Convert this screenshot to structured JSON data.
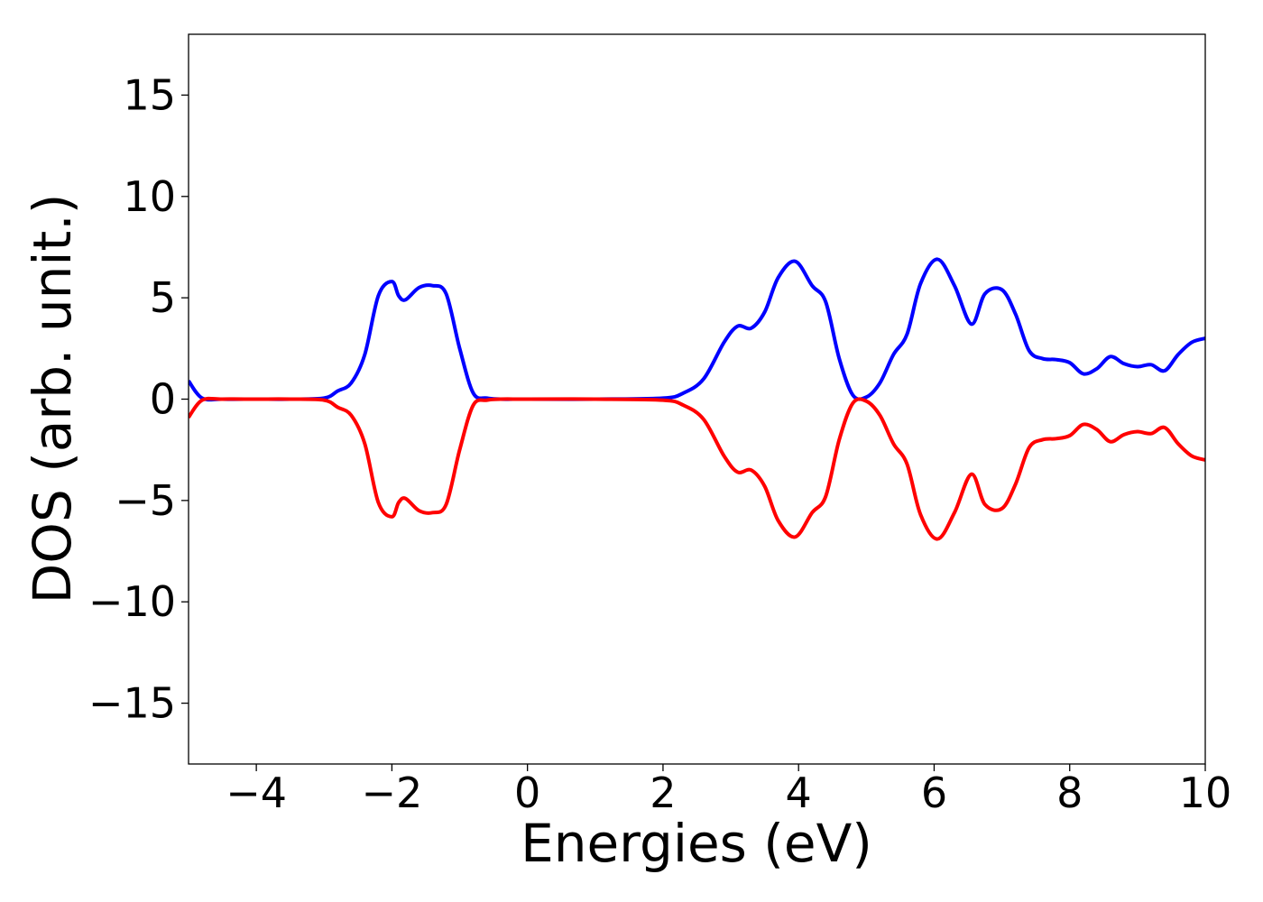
{
  "chart_data": {
    "type": "line",
    "xlabel": "Energies (eV)",
    "ylabel": "DOS (arb. unit.)",
    "xlim": [
      -5,
      10
    ],
    "ylim": [
      -18,
      18
    ],
    "xticks": [
      -4,
      -2,
      0,
      2,
      4,
      6,
      8,
      10
    ],
    "xtick_labels": [
      "−4",
      "−2",
      "0",
      "2",
      "4",
      "6",
      "8",
      "10"
    ],
    "yticks": [
      15,
      10,
      5,
      0,
      -5,
      -10,
      -15
    ],
    "ytick_labels": [
      "15",
      "10",
      "5",
      "0",
      "−5",
      "−10",
      "−15"
    ],
    "grid": false,
    "legend": "none",
    "x": [
      -5.0,
      -4.8,
      -4.5,
      -4.0,
      -3.5,
      -3.0,
      -2.8,
      -2.6,
      -2.4,
      -2.2,
      -2.0,
      -1.9,
      -1.8,
      -1.6,
      -1.4,
      -1.2,
      -1.0,
      -0.8,
      -0.6,
      -0.4,
      0.0,
      1.0,
      2.0,
      2.3,
      2.6,
      2.9,
      3.1,
      3.3,
      3.5,
      3.7,
      3.95,
      4.2,
      4.4,
      4.6,
      4.8,
      5.0,
      5.2,
      5.4,
      5.6,
      5.8,
      6.05,
      6.3,
      6.55,
      6.75,
      7.0,
      7.2,
      7.4,
      7.6,
      7.8,
      8.0,
      8.2,
      8.4,
      8.6,
      8.8,
      9.0,
      9.2,
      9.4,
      9.6,
      9.8,
      10.0
    ],
    "series": [
      {
        "color": "#0000ff",
        "values": [
          0.9,
          0.05,
          0.0,
          0.0,
          0.0,
          0.05,
          0.4,
          0.8,
          2.2,
          5.1,
          5.8,
          5.1,
          4.9,
          5.5,
          5.6,
          5.2,
          2.5,
          0.3,
          0.05,
          0.0,
          0.0,
          0.0,
          0.05,
          0.3,
          1.0,
          2.8,
          3.6,
          3.5,
          4.3,
          6.0,
          6.8,
          5.6,
          4.8,
          2.0,
          0.2,
          0.1,
          0.8,
          2.2,
          3.2,
          5.7,
          6.9,
          5.6,
          3.7,
          5.2,
          5.4,
          4.2,
          2.4,
          2.0,
          1.95,
          1.8,
          1.25,
          1.5,
          2.1,
          1.75,
          1.6,
          1.7,
          1.4,
          2.2,
          2.8,
          3.0
        ]
      },
      {
        "color": "#ff0000",
        "values": [
          -0.9,
          -0.05,
          0.0,
          0.0,
          0.0,
          -0.05,
          -0.4,
          -0.8,
          -2.2,
          -5.1,
          -5.8,
          -5.1,
          -4.9,
          -5.5,
          -5.6,
          -5.2,
          -2.5,
          -0.3,
          -0.05,
          0.0,
          0.0,
          0.0,
          -0.05,
          -0.3,
          -1.0,
          -2.8,
          -3.6,
          -3.5,
          -4.3,
          -6.0,
          -6.8,
          -5.6,
          -4.8,
          -2.0,
          -0.2,
          -0.1,
          -0.8,
          -2.2,
          -3.2,
          -5.7,
          -6.9,
          -5.6,
          -3.7,
          -5.2,
          -5.4,
          -4.2,
          -2.4,
          -2.0,
          -1.95,
          -1.8,
          -1.25,
          -1.5,
          -2.1,
          -1.75,
          -1.6,
          -1.7,
          -1.4,
          -2.2,
          -2.8,
          -3.0
        ]
      }
    ]
  }
}
